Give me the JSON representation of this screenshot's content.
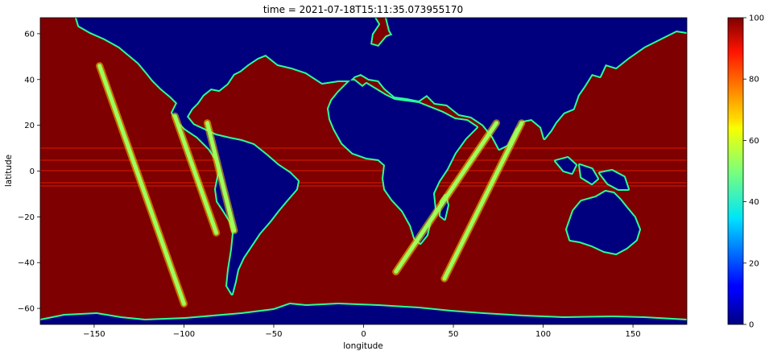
{
  "chart_data": {
    "type": "heatmap",
    "title": "time = 2021-07-18T15:11:35.073955170",
    "xlabel": "longitude",
    "ylabel": "latitude",
    "xlim": [
      -180,
      180
    ],
    "ylim": [
      -67,
      67
    ],
    "x_ticks": [
      -150,
      -100,
      -50,
      0,
      50,
      100,
      150
    ],
    "y_ticks": [
      -60,
      -40,
      -20,
      0,
      20,
      40,
      60
    ],
    "colorbar": {
      "colormap": "jet",
      "range": [
        0,
        100
      ],
      "ticks": [
        0,
        20,
        40,
        60,
        80,
        100
      ]
    },
    "ocean_value": 100,
    "land_value": 0,
    "swath_value": 60,
    "swaths": [
      {
        "lon_start": -147,
        "lat_start": 46,
        "lon_end": -100,
        "lat_end": -58
      },
      {
        "lon_start": -105,
        "lat_start": 24,
        "lon_end": -82,
        "lat_end": -27
      },
      {
        "lon_start": -87,
        "lat_start": 21,
        "lon_end": -72,
        "lat_end": -26
      },
      {
        "lon_start": 74,
        "lat_start": 21,
        "lon_end": 18,
        "lat_end": -44
      },
      {
        "lon_start": 88,
        "lat_start": 21,
        "lon_end": 45,
        "lat_end": -47
      }
    ]
  }
}
